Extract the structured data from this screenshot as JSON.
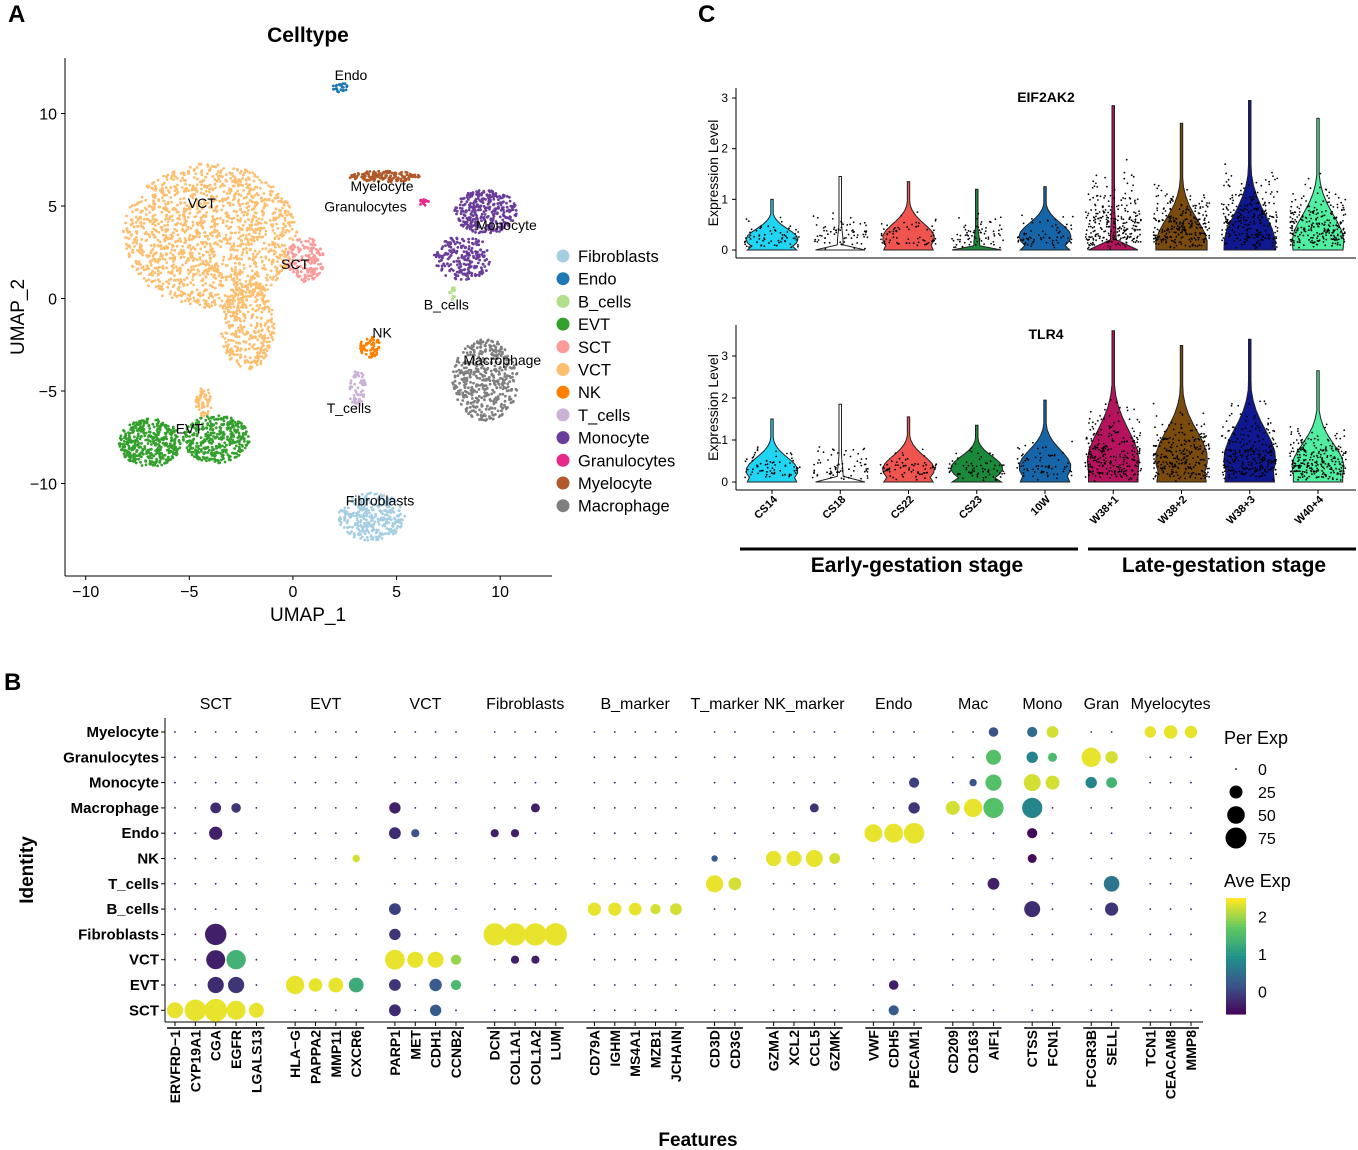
{
  "panels": {
    "a_letter": "A",
    "b_letter": "B",
    "c_letter": "C"
  },
  "chart_data": [
    {
      "type": "scatter",
      "panel": "A",
      "title": "Celltype",
      "xlabel": "UMAP_1",
      "ylabel": "UMAP_2",
      "xlim": [
        -11,
        12.5
      ],
      "ylim": [
        -15,
        13
      ],
      "xticks": [
        -10,
        -5,
        0,
        5,
        10
      ],
      "xtick_labels": [
        "−10",
        "−5",
        "0",
        "5",
        "10"
      ],
      "yticks": [
        -10,
        -5,
        0,
        5,
        10
      ],
      "ytick_labels": [
        "−10",
        "−5",
        "0",
        "5",
        "10"
      ],
      "legend": [
        {
          "name": "Fibroblasts",
          "color": "#a6cee3"
        },
        {
          "name": "Endo",
          "color": "#1f78b4"
        },
        {
          "name": "B_cells",
          "color": "#b2df8a"
        },
        {
          "name": "EVT",
          "color": "#33a02c"
        },
        {
          "name": "SCT",
          "color": "#fb9a99"
        },
        {
          "name": "VCT",
          "color": "#fdbf6f"
        },
        {
          "name": "NK",
          "color": "#ff7f00"
        },
        {
          "name": "T_cells",
          "color": "#cab2d6"
        },
        {
          "name": "Monocyte",
          "color": "#6a3d9a"
        },
        {
          "name": "Granulocytes",
          "color": "#e7298a"
        },
        {
          "name": "Myelocyte",
          "color": "#b15928"
        },
        {
          "name": "Macrophage",
          "color": "#7f7f7f"
        }
      ],
      "cluster_labels": [
        {
          "text": "Endo",
          "x": 2.8,
          "y": 11.8
        },
        {
          "text": "VCT",
          "x": -4.4,
          "y": 4.9
        },
        {
          "text": "Myelocyte",
          "x": 4.3,
          "y": 5.8
        },
        {
          "text": "Granulocytes",
          "x": 3.5,
          "y": 4.7
        },
        {
          "text": "Monocyte",
          "x": 10.3,
          "y": 3.7
        },
        {
          "text": "SCT",
          "x": 0.1,
          "y": 1.6
        },
        {
          "text": "B_cells",
          "x": 7.4,
          "y": -0.6
        },
        {
          "text": "NK",
          "x": 4.3,
          "y": -2.1
        },
        {
          "text": "Macrophage",
          "x": 10.1,
          "y": -3.6
        },
        {
          "text": "T_cells",
          "x": 2.7,
          "y": -6.2
        },
        {
          "text": "EVT",
          "x": -5.0,
          "y": -7.3
        },
        {
          "text": "Fibroblasts",
          "x": 4.2,
          "y": -11.2
        }
      ]
    },
    {
      "type": "violin",
      "panel": "C",
      "groups": [
        "CS14",
        "CS18",
        "CS22",
        "CS23",
        "10W",
        "W38+1",
        "W38+2",
        "W38+3",
        "W40+4"
      ],
      "group_colors": [
        "#20d4f4",
        "#ffffff",
        "#f0544f",
        "#1a8a3a",
        "#1565a8",
        "#b5135e",
        "#7a4b0d",
        "#101890",
        "#50eea0"
      ],
      "ylabel": "Expression Level",
      "stage_labels": [
        "Early-gestation stage",
        "Late-gestation stage"
      ],
      "genes": [
        {
          "name": "EIF2AK2",
          "ylim": [
            0,
            3
          ],
          "yticks": [
            0,
            1,
            2,
            3
          ],
          "max_values": [
            1.0,
            1.45,
            1.35,
            1.2,
            1.25,
            2.85,
            2.5,
            2.95,
            2.6
          ],
          "median_density": [
            0.35,
            0.0,
            0.4,
            0.0,
            0.45,
            0.0,
            0.05,
            0.15,
            0.25
          ]
        },
        {
          "name": "TLR4",
          "ylim": [
            0,
            3.5
          ],
          "yticks": [
            0,
            1,
            2,
            3
          ],
          "max_values": [
            1.5,
            1.85,
            1.55,
            1.35,
            1.95,
            3.6,
            3.25,
            3.4,
            2.65
          ],
          "median_density": [
            0.45,
            0.0,
            0.5,
            0.55,
            0.6,
            0.8,
            0.9,
            0.9,
            0.6
          ]
        }
      ]
    },
    {
      "type": "dotplot",
      "panel": "B",
      "xlabel": "Features",
      "ylabel": "Identity",
      "identities": [
        "Myelocyte",
        "Granulocytes",
        "Monocyte",
        "Macrophage",
        "Endo",
        "NK",
        "T_cells",
        "B_cells",
        "Fibroblasts",
        "VCT",
        "EVT",
        "SCT"
      ],
      "gene_groups": [
        {
          "name": "SCT",
          "genes": [
            "ERVFRD−1",
            "CYP19A1",
            "CGA",
            "EGFR",
            "LGALS13"
          ]
        },
        {
          "name": "EVT",
          "genes": [
            "HLA−G",
            "PAPPA2",
            "MMP11",
            "CXCR6"
          ]
        },
        {
          "name": "VCT",
          "genes": [
            "PARP1",
            "MET",
            "CDH1",
            "CCNB2"
          ]
        },
        {
          "name": "Fibroblasts",
          "genes": [
            "DCN",
            "COL1A1",
            "COL1A2",
            "LUM"
          ]
        },
        {
          "name": "B_marker",
          "genes": [
            "CD79A",
            "IGHM",
            "MS4A1",
            "MZB1",
            "JCHAIN"
          ]
        },
        {
          "name": "T_marker",
          "genes": [
            "CD3D",
            "CD3G"
          ]
        },
        {
          "name": "NK_marker",
          "genes": [
            "GZMA",
            "XCL2",
            "CCL5",
            "GZMK"
          ]
        },
        {
          "name": "Endo",
          "genes": [
            "VWF",
            "CDH5",
            "PECAM1"
          ]
        },
        {
          "name": "Mac",
          "genes": [
            "CD209",
            "CD163",
            "AIF1"
          ]
        },
        {
          "name": "Mono",
          "genes": [
            "CTSS",
            "FCN1"
          ]
        },
        {
          "name": "Gran",
          "genes": [
            "FCGR3B",
            "SELL"
          ]
        },
        {
          "name": "Myelocytes",
          "genes": [
            "TCN1",
            "CEACAM8",
            "MMP8"
          ]
        }
      ],
      "pct_legend_title": "Per Exp",
      "pct_legend_values": [
        0,
        25,
        50,
        75
      ],
      "avg_legend_title": "Ave Exp",
      "avg_legend_ticks": [
        2,
        1,
        0
      ],
      "avg_range": [
        -0.6,
        2.5
      ],
      "high_points": [
        {
          "id": "Myelocyte",
          "gene": "FCN1",
          "pct": 20,
          "avg": 2.3
        },
        {
          "id": "Myelocyte",
          "gene": "TCN1",
          "pct": 18,
          "avg": 2.4
        },
        {
          "id": "Myelocyte",
          "gene": "CEACAM8",
          "pct": 28,
          "avg": 2.4
        },
        {
          "id": "Myelocyte",
          "gene": "MMP8",
          "pct": 22,
          "avg": 2.4
        },
        {
          "id": "Myelocyte",
          "gene": "AIF1",
          "pct": 12,
          "avg": 0.2
        },
        {
          "id": "Myelocyte",
          "gene": "CTSS",
          "pct": 14,
          "avg": 0.5
        },
        {
          "id": "Granulocytes",
          "gene": "AIF1",
          "pct": 35,
          "avg": 1.6
        },
        {
          "id": "Granulocytes",
          "gene": "CTSS",
          "pct": 18,
          "avg": 0.8
        },
        {
          "id": "Granulocytes",
          "gene": "FCN1",
          "pct": 10,
          "avg": 1.5
        },
        {
          "id": "Granulocytes",
          "gene": "FCGR3B",
          "pct": 62,
          "avg": 2.4
        },
        {
          "id": "Granulocytes",
          "gene": "SELL",
          "pct": 22,
          "avg": 2.3
        },
        {
          "id": "Monocyte",
          "gene": "PECAM1",
          "pct": 14,
          "avg": 0.0
        },
        {
          "id": "Monocyte",
          "gene": "CD163",
          "pct": 6,
          "avg": 0.2
        },
        {
          "id": "Monocyte",
          "gene": "AIF1",
          "pct": 42,
          "avg": 1.6
        },
        {
          "id": "Monocyte",
          "gene": "CTSS",
          "pct": 46,
          "avg": 2.3
        },
        {
          "id": "Monocyte",
          "gene": "FCN1",
          "pct": 30,
          "avg": 2.3
        },
        {
          "id": "Monocyte",
          "gene": "FCGR3B",
          "pct": 18,
          "avg": 0.8
        },
        {
          "id": "Monocyte",
          "gene": "SELL",
          "pct": 16,
          "avg": 1.4
        },
        {
          "id": "Macrophage",
          "gene": "CGA",
          "pct": 16,
          "avg": -0.2
        },
        {
          "id": "Macrophage",
          "gene": "EGFR",
          "pct": 12,
          "avg": -0.1
        },
        {
          "id": "Macrophage",
          "gene": "PARP1",
          "pct": 18,
          "avg": -0.3
        },
        {
          "id": "Macrophage",
          "gene": "COL1A2",
          "pct": 10,
          "avg": -0.3
        },
        {
          "id": "Macrophage",
          "gene": "CCL5",
          "pct": 10,
          "avg": -0.1
        },
        {
          "id": "Macrophage",
          "gene": "PECAM1",
          "pct": 18,
          "avg": -0.1
        },
        {
          "id": "Macrophage",
          "gene": "CD209",
          "pct": 30,
          "avg": 2.3
        },
        {
          "id": "Macrophage",
          "gene": "CD163",
          "pct": 56,
          "avg": 2.4
        },
        {
          "id": "Macrophage",
          "gene": "AIF1",
          "pct": 68,
          "avg": 1.6
        },
        {
          "id": "Macrophage",
          "gene": "CTSS",
          "pct": 68,
          "avg": 0.8
        },
        {
          "id": "Endo",
          "gene": "CGA",
          "pct": 26,
          "avg": -0.3
        },
        {
          "id": "Endo",
          "gene": "PARP1",
          "pct": 20,
          "avg": -0.2
        },
        {
          "id": "Endo",
          "gene": "MET",
          "pct": 8,
          "avg": 0.2
        },
        {
          "id": "Endo",
          "gene": "DCN",
          "pct": 8,
          "avg": -0.3
        },
        {
          "id": "Endo",
          "gene": "COL1A1",
          "pct": 8,
          "avg": -0.3
        },
        {
          "id": "Endo",
          "gene": "VWF",
          "pct": 52,
          "avg": 2.4
        },
        {
          "id": "Endo",
          "gene": "CDH5",
          "pct": 58,
          "avg": 2.4
        },
        {
          "id": "Endo",
          "gene": "PECAM1",
          "pct": 72,
          "avg": 2.4
        },
        {
          "id": "Endo",
          "gene": "CTSS",
          "pct": 14,
          "avg": -0.5
        },
        {
          "id": "NK",
          "gene": "CXCR6",
          "pct": 6,
          "avg": 2.3
        },
        {
          "id": "NK",
          "gene": "CD3D",
          "pct": 4,
          "avg": 0.3
        },
        {
          "id": "NK",
          "gene": "GZMA",
          "pct": 36,
          "avg": 2.4
        },
        {
          "id": "NK",
          "gene": "XCL2",
          "pct": 36,
          "avg": 2.4
        },
        {
          "id": "NK",
          "gene": "CCL5",
          "pct": 46,
          "avg": 2.4
        },
        {
          "id": "NK",
          "gene": "GZMK",
          "pct": 16,
          "avg": 2.3
        },
        {
          "id": "NK",
          "gene": "CTSS",
          "pct": 10,
          "avg": -0.5
        },
        {
          "id": "T_cells",
          "gene": "CD3D",
          "pct": 48,
          "avg": 2.4
        },
        {
          "id": "T_cells",
          "gene": "CD3G",
          "pct": 24,
          "avg": 2.3
        },
        {
          "id": "T_cells",
          "gene": "AIF1",
          "pct": 20,
          "avg": -0.3
        },
        {
          "id": "T_cells",
          "gene": "SELL",
          "pct": 38,
          "avg": 0.6
        },
        {
          "id": "B_cells",
          "gene": "PARP1",
          "pct": 20,
          "avg": 0.0
        },
        {
          "id": "B_cells",
          "gene": "CD79A",
          "pct": 26,
          "avg": 2.4
        },
        {
          "id": "B_cells",
          "gene": "IGHM",
          "pct": 26,
          "avg": 2.4
        },
        {
          "id": "B_cells",
          "gene": "MS4A1",
          "pct": 24,
          "avg": 2.4
        },
        {
          "id": "B_cells",
          "gene": "MZB1",
          "pct": 14,
          "avg": 2.3
        },
        {
          "id": "B_cells",
          "gene": "JCHAIN",
          "pct": 20,
          "avg": 2.3
        },
        {
          "id": "B_cells",
          "gene": "CTSS",
          "pct": 40,
          "avg": -0.2
        },
        {
          "id": "B_cells",
          "gene": "SELL",
          "pct": 26,
          "avg": -0.1
        },
        {
          "id": "Fibroblasts",
          "gene": "CGA",
          "pct": 78,
          "avg": -0.3
        },
        {
          "id": "Fibroblasts",
          "gene": "PARP1",
          "pct": 18,
          "avg": -0.1
        },
        {
          "id": "Fibroblasts",
          "gene": "DCN",
          "pct": 86,
          "avg": 2.4
        },
        {
          "id": "Fibroblasts",
          "gene": "COL1A1",
          "pct": 86,
          "avg": 2.4
        },
        {
          "id": "Fibroblasts",
          "gene": "COL1A2",
          "pct": 86,
          "avg": 2.4
        },
        {
          "id": "Fibroblasts",
          "gene": "LUM",
          "pct": 88,
          "avg": 2.4
        },
        {
          "id": "VCT",
          "gene": "CGA",
          "pct": 60,
          "avg": -0.3
        },
        {
          "id": "VCT",
          "gene": "EGFR",
          "pct": 62,
          "avg": 1.4
        },
        {
          "id": "VCT",
          "gene": "PARP1",
          "pct": 66,
          "avg": 2.4
        },
        {
          "id": "VCT",
          "gene": "MET",
          "pct": 40,
          "avg": 2.4
        },
        {
          "id": "VCT",
          "gene": "CDH1",
          "pct": 40,
          "avg": 2.4
        },
        {
          "id": "VCT",
          "gene": "CCNB2",
          "pct": 14,
          "avg": 2.0
        },
        {
          "id": "VCT",
          "gene": "COL1A1",
          "pct": 8,
          "avg": -0.3
        },
        {
          "id": "VCT",
          "gene": "COL1A2",
          "pct": 8,
          "avg": -0.3
        },
        {
          "id": "EVT",
          "gene": "CGA",
          "pct": 42,
          "avg": -0.2
        },
        {
          "id": "EVT",
          "gene": "EGFR",
          "pct": 42,
          "avg": -0.1
        },
        {
          "id": "EVT",
          "gene": "HLA−G",
          "pct": 56,
          "avg": 2.4
        },
        {
          "id": "EVT",
          "gene": "PAPPA2",
          "pct": 28,
          "avg": 2.4
        },
        {
          "id": "EVT",
          "gene": "MMP11",
          "pct": 34,
          "avg": 2.4
        },
        {
          "id": "EVT",
          "gene": "CXCR6",
          "pct": 34,
          "avg": 1.3
        },
        {
          "id": "EVT",
          "gene": "PARP1",
          "pct": 20,
          "avg": -0.1
        },
        {
          "id": "EVT",
          "gene": "CDH1",
          "pct": 22,
          "avg": 0.3
        },
        {
          "id": "EVT",
          "gene": "CCNB2",
          "pct": 14,
          "avg": 1.5
        },
        {
          "id": "EVT",
          "gene": "CDH5",
          "pct": 12,
          "avg": -0.3
        },
        {
          "id": "SCT",
          "gene": "ERVFRD−1",
          "pct": 40,
          "avg": 2.4
        },
        {
          "id": "SCT",
          "gene": "CYP19A1",
          "pct": 80,
          "avg": 2.4
        },
        {
          "id": "SCT",
          "gene": "CGA",
          "pct": 90,
          "avg": 2.4
        },
        {
          "id": "SCT",
          "gene": "EGFR",
          "pct": 60,
          "avg": 2.4
        },
        {
          "id": "SCT",
          "gene": "LGALS13",
          "pct": 34,
          "avg": 2.4
        },
        {
          "id": "SCT",
          "gene": "PARP1",
          "pct": 20,
          "avg": -0.2
        },
        {
          "id": "SCT",
          "gene": "CDH1",
          "pct": 18,
          "avg": 0.3
        },
        {
          "id": "SCT",
          "gene": "CDH5",
          "pct": 14,
          "avg": 0.3
        }
      ]
    }
  ]
}
